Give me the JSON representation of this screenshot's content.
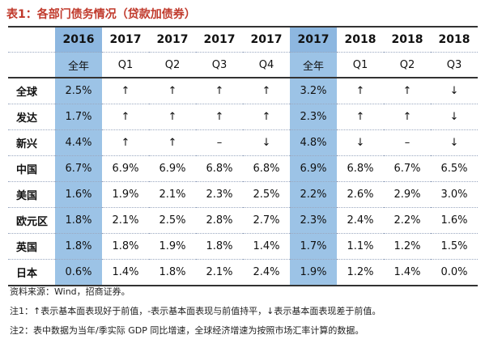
{
  "title": "表1：各部门债务情况（贷款加债券）",
  "table": {
    "years": [
      "2016",
      "2017",
      "2017",
      "2017",
      "2017",
      "2017",
      "2018",
      "2018",
      "2018"
    ],
    "periods": [
      "全年",
      "Q1",
      "Q2",
      "Q3",
      "Q4",
      "全年",
      "Q1",
      "Q2",
      "Q3"
    ],
    "highlight_columns": [
      0,
      5
    ],
    "rows": [
      {
        "label": "全球",
        "values": [
          "2.5%",
          "↑",
          "↑",
          "↑",
          "↑",
          "3.2%",
          "↑",
          "↑",
          "↓"
        ]
      },
      {
        "label": "发达",
        "values": [
          "1.7%",
          "↑",
          "↑",
          "↑",
          "↑",
          "2.3%",
          "↑",
          "↑",
          "↓"
        ]
      },
      {
        "label": "新兴",
        "values": [
          "4.4%",
          "↑",
          "↑",
          "–",
          "↓",
          "4.8%",
          "↓",
          "–",
          "↓"
        ]
      },
      {
        "label": "中国",
        "values": [
          "6.7%",
          "6.9%",
          "6.9%",
          "6.8%",
          "6.8%",
          "6.9%",
          "6.8%",
          "6.7%",
          "6.5%"
        ]
      },
      {
        "label": "美国",
        "values": [
          "1.6%",
          "1.9%",
          "2.1%",
          "2.3%",
          "2.5%",
          "2.2%",
          "2.6%",
          "2.9%",
          "3.0%"
        ]
      },
      {
        "label": "欧元区",
        "values": [
          "1.8%",
          "2.1%",
          "2.5%",
          "2.8%",
          "2.7%",
          "2.3%",
          "2.4%",
          "2.2%",
          "1.6%"
        ]
      },
      {
        "label": "英国",
        "values": [
          "1.8%",
          "1.8%",
          "1.9%",
          "1.8%",
          "1.4%",
          "1.7%",
          "1.1%",
          "1.2%",
          "1.5%"
        ]
      },
      {
        "label": "日本",
        "values": [
          "0.6%",
          "1.4%",
          "1.8%",
          "2.1%",
          "2.4%",
          "1.9%",
          "1.2%",
          "1.4%",
          "0.0%"
        ]
      }
    ]
  },
  "notes": {
    "source": "资料来源：Wind，招商证券。",
    "note1": "注1：↑表示基本面表现好于前值，-表示基本面表现与前值持平，↓表示基本面表现差于前值。",
    "note2": "注2：表中数据为当年/季实际 GDP 同比增速，全球经济增速为按照市场汇率计算的数据。"
  }
}
